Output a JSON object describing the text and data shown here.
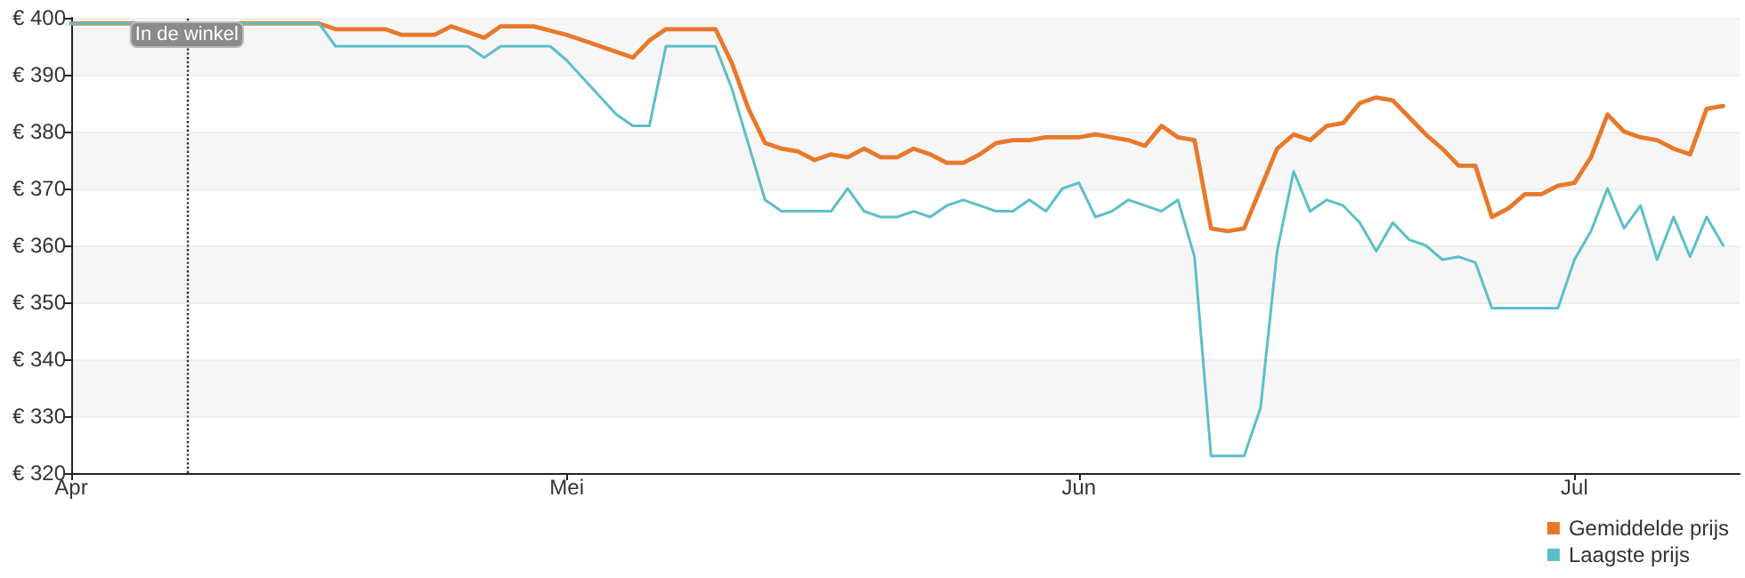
{
  "chart_data": {
    "type": "line",
    "xlim": [
      "--04-01",
      "--07-11"
    ],
    "xticks": [
      {
        "value": "--04-01",
        "label": "Apr"
      },
      {
        "value": "--05-01",
        "label": "Mei"
      },
      {
        "value": "--06-01",
        "label": "Jun"
      },
      {
        "value": "--07-01",
        "label": "Jul"
      }
    ],
    "ylim": [
      320,
      400
    ],
    "yticks": [
      {
        "value": 320,
        "label": "€ 320"
      },
      {
        "value": 330,
        "label": "€ 330"
      },
      {
        "value": 340,
        "label": "€ 340"
      },
      {
        "value": 350,
        "label": "€ 350"
      },
      {
        "value": 360,
        "label": "€ 360"
      },
      {
        "value": 370,
        "label": "€ 370"
      },
      {
        "value": 380,
        "label": "€ 380"
      },
      {
        "value": 390,
        "label": "€ 390"
      },
      {
        "value": 400,
        "label": "€ 400"
      }
    ],
    "grid": "y",
    "legend": "bottom right",
    "marker": "none",
    "line_style": "solid",
    "ref_lines": [
      {
        "axis": "x",
        "value": "--04-08",
        "label": "In de winkel",
        "color": "#333333",
        "line_style": "dotted"
      }
    ],
    "series": [
      {
        "name": "Gemiddelde prijs",
        "color": "#e8782a",
        "x": [
          "--04-01",
          "--04-16",
          "--04-17",
          "--04-20",
          "--04-21",
          "--04-23",
          "--04-24",
          "--04-26",
          "--04-27",
          "--04-29",
          "--05-01",
          "--05-02",
          "--05-05",
          "--05-06",
          "--05-07",
          "--05-10",
          "--05-11",
          "--05-12",
          "--05-13",
          "--05-14",
          "--05-15",
          "--05-16",
          "--05-17",
          "--05-18",
          "--05-19",
          "--05-20",
          "--05-21",
          "--05-22",
          "--05-23",
          "--05-24",
          "--05-25",
          "--05-26",
          "--05-27",
          "--05-28",
          "--05-29",
          "--05-30",
          "--05-31",
          "--06-01",
          "--06-02",
          "--06-03",
          "--06-04",
          "--06-05",
          "--06-06",
          "--06-07",
          "--06-08",
          "--06-09",
          "--06-10",
          "--06-11",
          "--06-12",
          "--06-13",
          "--06-14",
          "--06-15",
          "--06-16",
          "--06-17",
          "--06-18",
          "--06-19",
          "--06-20",
          "--06-21",
          "--06-22",
          "--06-23",
          "--06-24",
          "--06-25",
          "--06-26",
          "--06-27",
          "--06-28",
          "--06-29",
          "--06-30",
          "--07-01",
          "--07-02",
          "--07-03",
          "--07-04",
          "--07-05",
          "--07-06",
          "--07-07",
          "--07-08",
          "--07-09",
          "--07-10"
        ],
        "values": [
          399,
          399,
          398,
          398,
          397,
          397,
          398.5,
          396.5,
          398.5,
          398.5,
          397,
          396,
          393,
          396,
          398,
          398,
          392,
          384,
          378,
          377,
          376.5,
          375,
          376,
          375.5,
          377,
          375.5,
          375.5,
          377,
          376,
          374.5,
          374.5,
          376,
          378,
          378.5,
          378.5,
          379,
          379,
          379,
          379.5,
          379,
          378.5,
          377.5,
          381,
          379,
          378.5,
          363,
          362.5,
          363,
          370,
          377,
          379.5,
          378.5,
          381,
          381.5,
          385,
          386,
          385.5,
          382.5,
          379.5,
          377,
          374,
          374,
          365,
          366.5,
          369,
          369,
          370.5,
          371,
          375.5,
          383,
          380,
          379,
          378.5,
          377,
          376,
          384,
          384.5
        ]
      },
      {
        "name": "Laagste prijs",
        "color": "#5bbfc8",
        "x": [
          "--04-01",
          "--04-16",
          "--04-17",
          "--04-25",
          "--04-26",
          "--04-27",
          "--04-30",
          "--05-01",
          "--05-04",
          "--05-05",
          "--05-06",
          "--05-07",
          "--05-10",
          "--05-11",
          "--05-13",
          "--05-14",
          "--05-17",
          "--05-18",
          "--05-19",
          "--05-20",
          "--05-21",
          "--05-22",
          "--05-23",
          "--05-24",
          "--05-25",
          "--05-26",
          "--05-27",
          "--05-28",
          "--05-29",
          "--05-30",
          "--05-31",
          "--06-01",
          "--06-02",
          "--06-03",
          "--06-04",
          "--06-05",
          "--06-06",
          "--06-07",
          "--06-08",
          "--06-09",
          "--06-10",
          "--06-11",
          "--06-12",
          "--06-13",
          "--06-14",
          "--06-15",
          "--06-16",
          "--06-17",
          "--06-18",
          "--06-19",
          "--06-20",
          "--06-21",
          "--06-22",
          "--06-23",
          "--06-24",
          "--06-25",
          "--06-26",
          "--06-30",
          "--07-01",
          "--07-02",
          "--07-03",
          "--07-04",
          "--07-05",
          "--07-06",
          "--07-07",
          "--07-08",
          "--07-09",
          "--07-10"
        ],
        "values": [
          399,
          399,
          395,
          395,
          393,
          395,
          395,
          392.5,
          383,
          381,
          381,
          395,
          395,
          387.5,
          368,
          366,
          366,
          370,
          366,
          365,
          365,
          366,
          365,
          367,
          368,
          367,
          366,
          366,
          368,
          366,
          370,
          371,
          365,
          366,
          368,
          367,
          366,
          368,
          358,
          323,
          323,
          323,
          331.5,
          359,
          373,
          366,
          368,
          367,
          364,
          359,
          364,
          361,
          360,
          357.5,
          358,
          357,
          349,
          349,
          357.5,
          362.5,
          370,
          363,
          367,
          357.5,
          365,
          358,
          365,
          360
        ]
      }
    ]
  }
}
